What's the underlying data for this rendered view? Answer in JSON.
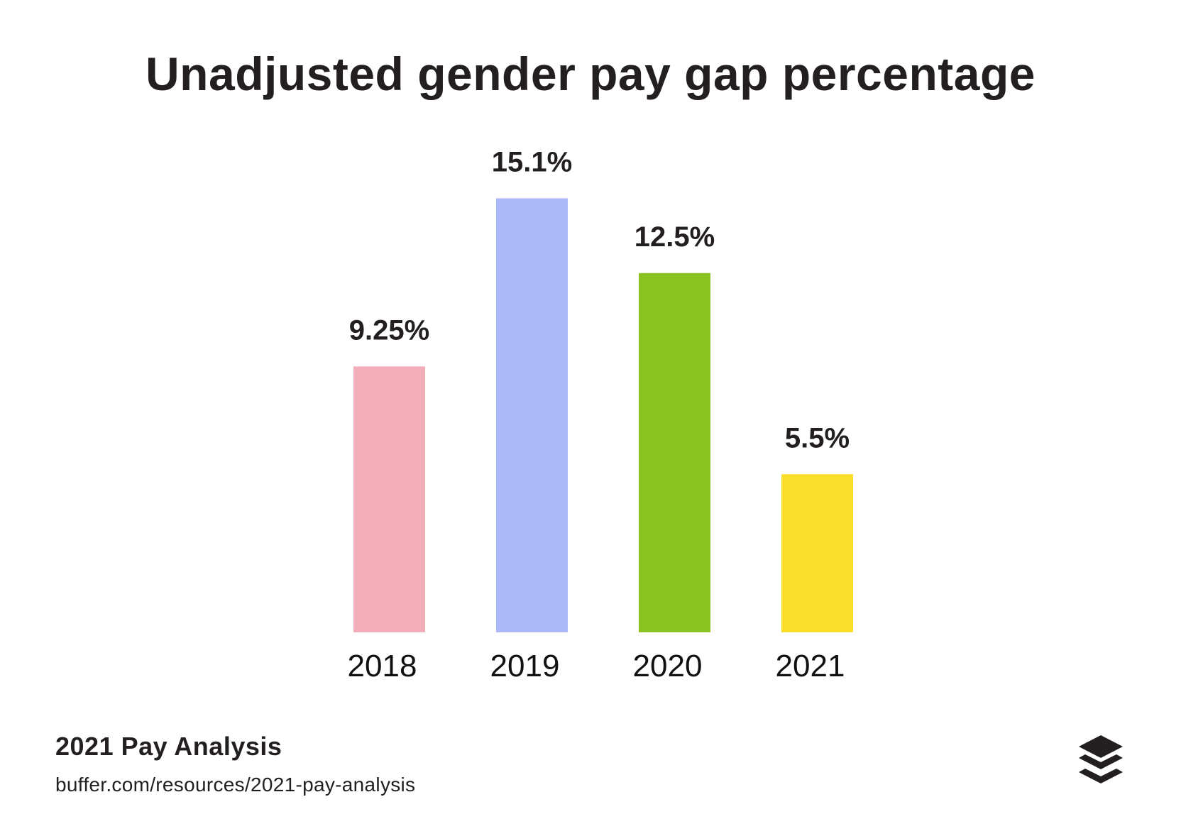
{
  "chart_data": {
    "type": "bar",
    "title": "Unadjusted gender pay gap percentage",
    "categories": [
      "2018",
      "2019",
      "2020",
      "2021"
    ],
    "values": [
      9.25,
      15.1,
      12.5,
      5.5
    ],
    "data_labels": [
      "9.25%",
      "15.1%",
      "12.5%",
      "5.5%"
    ],
    "colors": [
      "#f1aeb8",
      "#abb9f8",
      "#89c221",
      "#f9de2b"
    ],
    "xlabel": "",
    "ylabel": "",
    "grid": false,
    "y_axis_shown": false
  },
  "footer": {
    "title": "2021 Pay Analysis",
    "url": "buffer.com/resources/2021-pay-analysis"
  },
  "logo": {
    "icon": "buffer-stack-icon"
  }
}
